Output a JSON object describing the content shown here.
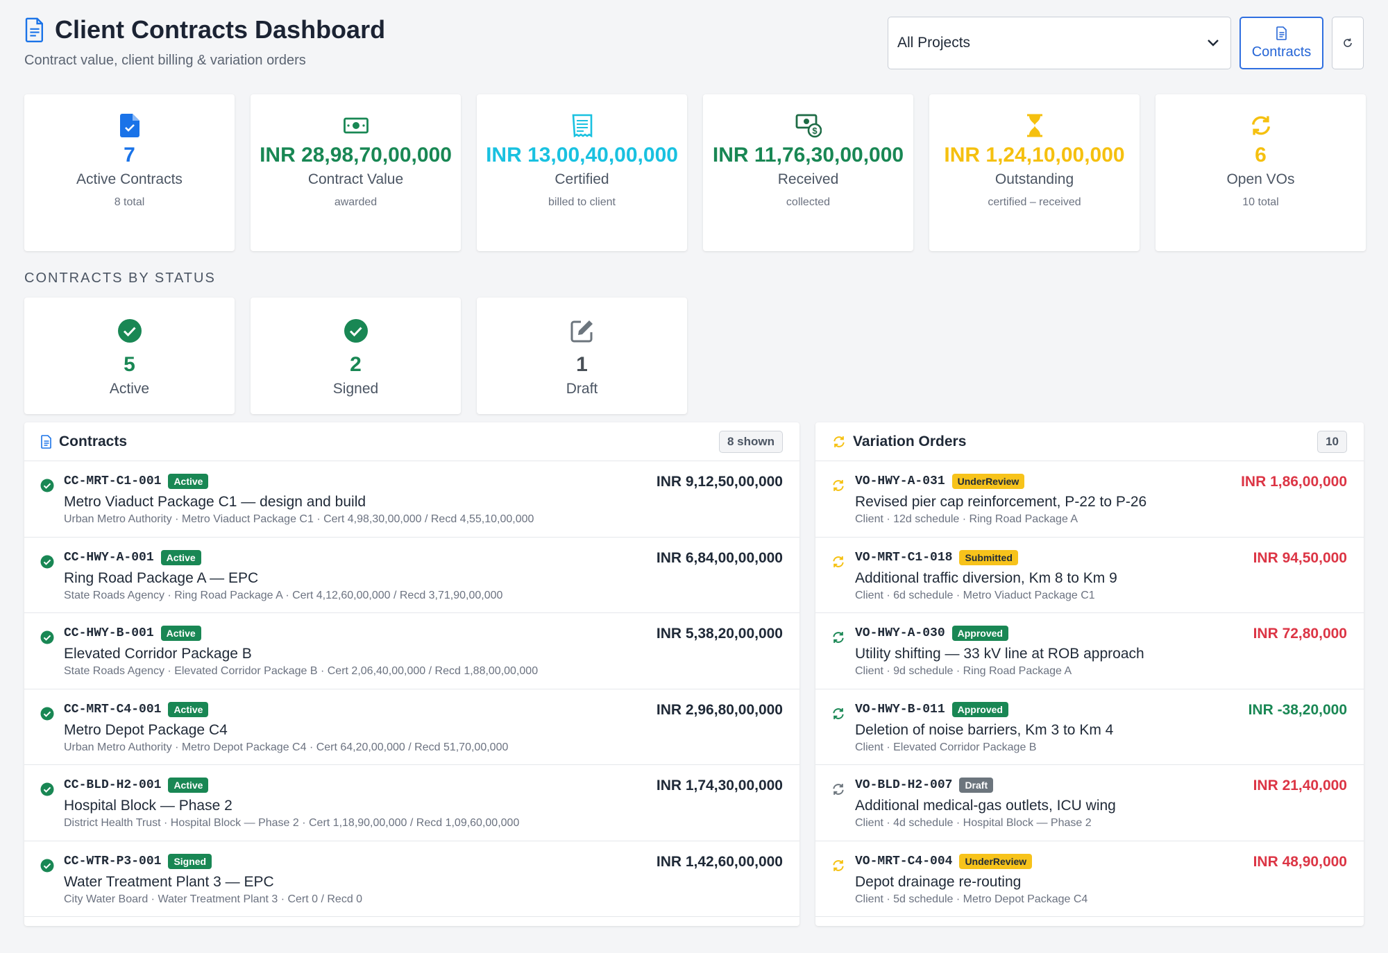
{
  "header": {
    "title": "Client Contracts Dashboard",
    "subtitle": "Contract value, client billing & variation orders",
    "project_select": "All Projects",
    "contracts_button": "Contracts"
  },
  "kpis": [
    {
      "icon": "contract-check-icon",
      "value": "7",
      "label": "Active Contracts",
      "sub": "8 total",
      "color": "#1a73e8"
    },
    {
      "icon": "money-icon",
      "value": "INR 28,98,70,00,000",
      "label": "Contract Value",
      "sub": "awarded",
      "color": "#198754"
    },
    {
      "icon": "receipt-icon",
      "value": "INR 13,00,40,00,000",
      "label": "Certified",
      "sub": "billed to client",
      "color": "#19c1e0"
    },
    {
      "icon": "money-received-icon",
      "value": "INR 11,76,30,00,000",
      "label": "Received",
      "sub": "collected",
      "color": "#198754"
    },
    {
      "icon": "hourglass-icon",
      "value": "INR 1,24,10,00,000",
      "label": "Outstanding",
      "sub": "certified – received",
      "color": "#f5c00f"
    },
    {
      "icon": "sync-icon",
      "value": "6",
      "label": "Open VOs",
      "sub": "10 total",
      "color": "#f5c00f"
    }
  ],
  "status_section": {
    "title": "CONTRACTS BY STATUS",
    "items": [
      {
        "icon": "check-circle-icon",
        "count": "5",
        "label": "Active"
      },
      {
        "icon": "check-circle-icon",
        "count": "2",
        "label": "Signed"
      },
      {
        "icon": "edit-icon",
        "count": "1",
        "label": "Draft"
      }
    ]
  },
  "contracts": {
    "title": "Contracts",
    "count": "8 shown",
    "rows": [
      {
        "code": "CC-MRT-C1-001",
        "status": "Active",
        "name": "Metro Viaduct Package C1 — design and build",
        "meta": "Urban Metro Authority · Metro Viaduct Package C1 · Cert 4,98,30,00,000 / Recd 4,55,10,00,000",
        "amount": "INR 9,12,50,00,000"
      },
      {
        "code": "CC-HWY-A-001",
        "status": "Active",
        "name": "Ring Road Package A — EPC",
        "meta": "State Roads Agency · Ring Road Package A · Cert 4,12,60,00,000 / Recd 3,71,90,00,000",
        "amount": "INR 6,84,00,00,000"
      },
      {
        "code": "CC-HWY-B-001",
        "status": "Active",
        "name": "Elevated Corridor Package B",
        "meta": "State Roads Agency · Elevated Corridor Package B · Cert 2,06,40,00,000 / Recd 1,88,00,00,000",
        "amount": "INR 5,38,20,00,000"
      },
      {
        "code": "CC-MRT-C4-001",
        "status": "Active",
        "name": "Metro Depot Package C4",
        "meta": "Urban Metro Authority · Metro Depot Package C4 · Cert 64,20,00,000 / Recd 51,70,00,000",
        "amount": "INR 2,96,80,00,000"
      },
      {
        "code": "CC-BLD-H2-001",
        "status": "Active",
        "name": "Hospital Block — Phase 2",
        "meta": "District Health Trust · Hospital Block — Phase 2 · Cert 1,18,90,00,000 / Recd 1,09,60,00,000",
        "amount": "INR 1,74,30,00,000"
      },
      {
        "code": "CC-WTR-P3-001",
        "status": "Signed",
        "name": "Water Treatment Plant 3 — EPC",
        "meta": "City Water Board · Water Treatment Plant 3 · Cert 0 / Recd 0",
        "amount": "INR 1,42,60,00,000"
      }
    ]
  },
  "variations": {
    "title": "Variation Orders",
    "count": "10",
    "rows": [
      {
        "code": "VO-HWY-A-031",
        "status": "UnderReview",
        "name": "Revised pier cap reinforcement, P-22 to P-26",
        "meta": "Client · 12d schedule · Ring Road Package A",
        "amount": "INR 1,86,00,000",
        "amount_color": "red"
      },
      {
        "code": "VO-MRT-C1-018",
        "status": "Submitted",
        "name": "Additional traffic diversion, Km 8 to Km 9",
        "meta": "Client · 6d schedule · Metro Viaduct Package C1",
        "amount": "INR 94,50,000",
        "amount_color": "red"
      },
      {
        "code": "VO-HWY-A-030",
        "status": "Approved",
        "name": "Utility shifting — 33 kV line at ROB approach",
        "meta": "Client · 9d schedule · Ring Road Package A",
        "amount": "INR 72,80,000",
        "amount_color": "red"
      },
      {
        "code": "VO-HWY-B-011",
        "status": "Approved",
        "name": "Deletion of noise barriers, Km 3 to Km 4",
        "meta": "Client · Elevated Corridor Package B",
        "amount": "INR -38,20,000",
        "amount_color": "green"
      },
      {
        "code": "VO-BLD-H2-007",
        "status": "Draft",
        "name": "Additional medical-gas outlets, ICU wing",
        "meta": "Client · 4d schedule · Hospital Block — Phase 2",
        "amount": "INR 21,40,000",
        "amount_color": "red"
      },
      {
        "code": "VO-MRT-C4-004",
        "status": "UnderReview",
        "name": "Depot drainage re-routing",
        "meta": "Client · 5d schedule · Metro Depot Package C4",
        "amount": "INR 48,90,000",
        "amount_color": "red"
      }
    ]
  }
}
